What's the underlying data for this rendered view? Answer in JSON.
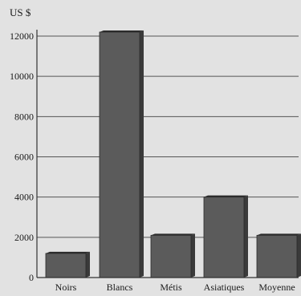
{
  "chart_data": {
    "type": "bar",
    "title": "",
    "xlabel": "",
    "ylabel": "US $",
    "categories": [
      "Noirs",
      "Blancs",
      "Métis",
      "Asiatiques",
      "Moyenne"
    ],
    "values": [
      1200,
      12200,
      2100,
      4000,
      2100
    ],
    "ylim": [
      0,
      12000
    ],
    "yticks": [
      0,
      2000,
      4000,
      6000,
      8000,
      10000,
      12000
    ],
    "grid": true,
    "legend": "none",
    "colors": {
      "bar_front": "#5b5b5b",
      "bar_side": "#3a3a3a",
      "bar_top": "#2c2c2c",
      "grid": "#555555",
      "background": "#e2e2e2"
    }
  }
}
